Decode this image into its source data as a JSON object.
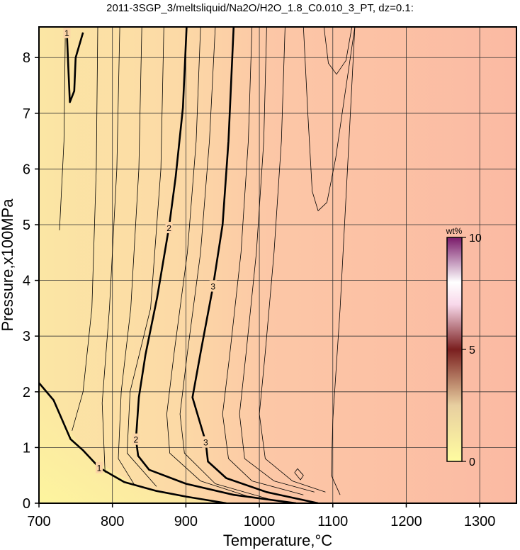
{
  "chart_data": {
    "type": "contour",
    "title": "2011-3SGP_3/meltsliquid/Na2O/H2O_1.8_C0.010_3_PT, dz=0.1:",
    "x_label": "Temperature,°C",
    "y_label": "Pressure,x100MPa",
    "xlim": [
      700,
      1350
    ],
    "ylim": [
      0,
      8.55
    ],
    "xticks": [
      700,
      800,
      900,
      1000,
      1100,
      1200,
      1300
    ],
    "yticks": [
      0,
      1,
      2,
      3,
      4,
      5,
      6,
      7,
      8
    ],
    "grid": true,
    "line_color": "#000000",
    "series": [
      {
        "level": 1,
        "x": [
          700,
          720,
          743,
          760,
          782,
          816,
          860,
          900,
          955,
          null,
          738,
          740,
          742,
          748,
          750,
          760
        ],
        "y": [
          2.16,
          1.85,
          1.15,
          0.95,
          0.64,
          0.38,
          0.22,
          0.12,
          0,
          null,
          8.45,
          7.8,
          7.2,
          7.4,
          8.0,
          8.45
        ]
      },
      {
        "level": 2,
        "x": [
          901,
          896,
          886,
          877,
          861,
          845,
          836,
          832,
          835,
          850,
          900,
          965,
          1050
        ],
        "y": [
          8.55,
          7.1,
          5.85,
          4.95,
          3.7,
          2.67,
          1.9,
          1.15,
          0.85,
          0.6,
          0.35,
          0.15,
          0
        ]
      },
      {
        "level": 3,
        "x": [
          965,
          958,
          950,
          937,
          920,
          909,
          927,
          930,
          955,
          1010,
          1080
        ],
        "y": [
          8.55,
          6.5,
          5.0,
          3.9,
          2.7,
          1.9,
          1.1,
          0.75,
          0.45,
          0.2,
          0
        ]
      }
    ],
    "thin_lines": [
      {
        "x": [
          736,
          734,
          728
        ],
        "y": [
          8.55,
          6.5,
          4.9
        ]
      },
      {
        "x": [
          780,
          778,
          772,
          760,
          745
        ],
        "y": [
          8.55,
          6.0,
          3.5,
          2.0,
          1.3
        ]
      },
      {
        "x": [
          810,
          806,
          796,
          786,
          790
        ],
        "y": [
          8.55,
          6.0,
          3.5,
          1.8,
          0.55
        ]
      },
      {
        "x": [
          840,
          836,
          825,
          812,
          808,
          830
        ],
        "y": [
          8.55,
          6.0,
          3.5,
          2.0,
          0.8,
          0.33
        ]
      },
      {
        "x": [
          870,
          866,
          852,
          824,
          820,
          860
        ],
        "y": [
          8.55,
          6.0,
          3.5,
          2.0,
          0.9,
          0.3
        ]
      },
      {
        "x": [
          920,
          914,
          902,
          884,
          874,
          878,
          920,
          990
        ],
        "y": [
          8.55,
          6.5,
          4.5,
          2.7,
          1.6,
          0.9,
          0.4,
          0.1
        ]
      },
      {
        "x": [
          940,
          932,
          920,
          902,
          892,
          898,
          940,
          1020
        ],
        "y": [
          8.55,
          6.5,
          4.5,
          2.7,
          1.6,
          0.9,
          0.35,
          0.05
        ]
      },
      {
        "x": [
          990,
          985,
          975,
          960,
          950,
          958,
          990,
          1060
        ],
        "y": [
          8.55,
          6.5,
          4.5,
          2.7,
          1.6,
          0.8,
          0.4,
          0.15
        ]
      },
      {
        "x": [
          1010,
          1006,
          996,
          982,
          973,
          980,
          1020,
          1075
        ],
        "y": [
          8.55,
          6.5,
          4.5,
          2.7,
          1.6,
          0.8,
          0.4,
          0.2
        ]
      },
      {
        "x": [
          1035,
          1030,
          1020,
          1008,
          1000,
          1008,
          1045,
          1090
        ],
        "y": [
          8.55,
          6.5,
          4.5,
          2.7,
          1.6,
          0.8,
          0.4,
          0.2
        ]
      },
      {
        "x": [
          1060,
          1066,
          1072,
          1080,
          1092,
          1104,
          1116,
          1130
        ],
        "y": [
          8.55,
          7.0,
          5.6,
          5.25,
          5.4,
          6.2,
          7.3,
          8.55
        ]
      },
      {
        "x": [
          1088,
          1094,
          1105,
          1118,
          1126
        ],
        "y": [
          8.55,
          7.9,
          7.7,
          7.95,
          8.55
        ]
      },
      {
        "x": [
          1130,
          1120,
          1110,
          1100,
          1098,
          1110
        ],
        "y": [
          8.55,
          6.0,
          3.5,
          1.5,
          0.5,
          0.15
        ]
      },
      {
        "x": [
          1048,
          1052,
          1060,
          1056,
          1048
        ],
        "y": [
          0.55,
          0.62,
          0.5,
          0.42,
          0.55
        ]
      }
    ],
    "colorbar": {
      "label": "wt%",
      "lim": [
        0,
        10
      ],
      "ticks": [
        0,
        5,
        10
      ]
    }
  }
}
